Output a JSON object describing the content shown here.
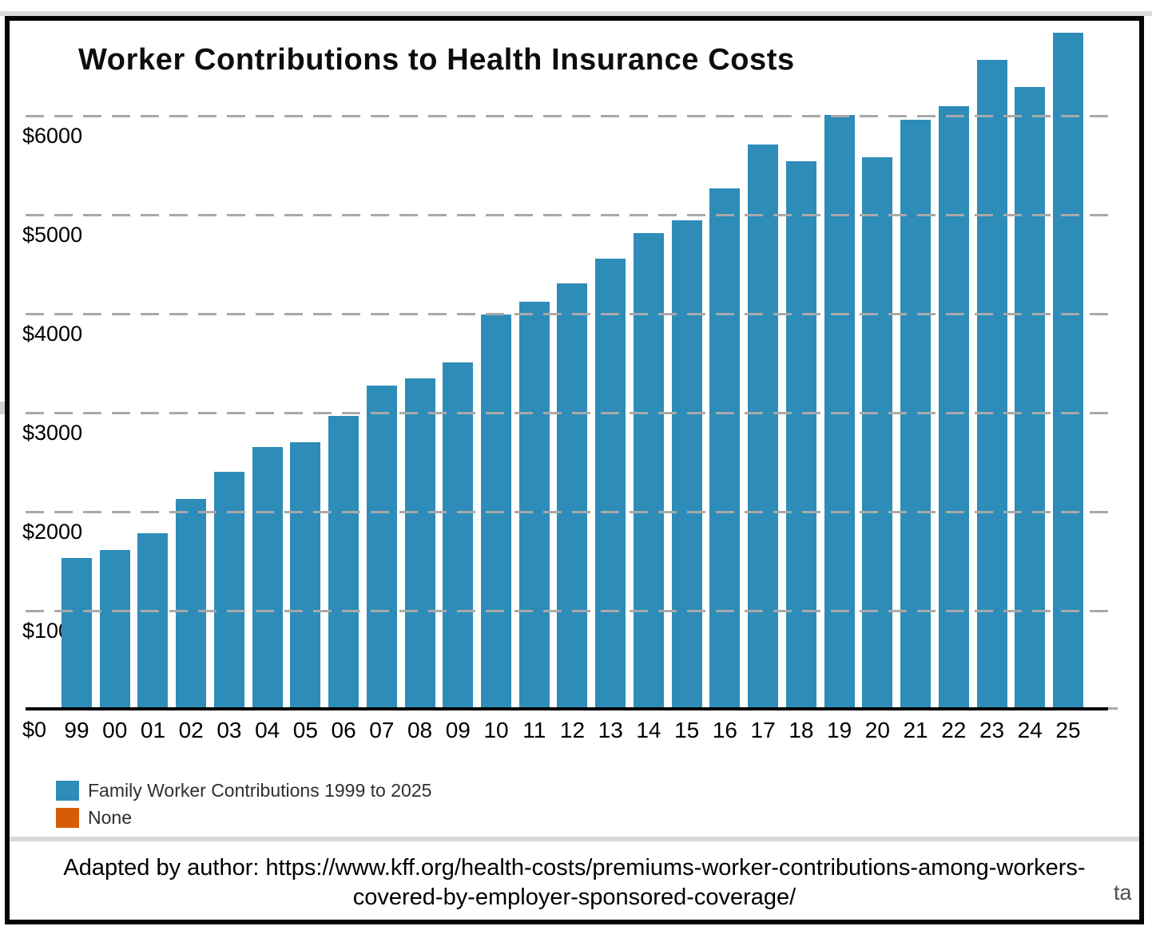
{
  "accent_colors": {
    "bar_blue": "#2e8cb8",
    "legend_orange": "#d85c08",
    "gridline_gray": "#a9a9a9"
  },
  "chart_data": {
    "type": "bar",
    "title": "Worker Contributions to Health Insurance Costs",
    "categories": [
      "99",
      "00",
      "01",
      "02",
      "03",
      "04",
      "05",
      "06",
      "07",
      "08",
      "09",
      "10",
      "11",
      "12",
      "13",
      "14",
      "15",
      "16",
      "17",
      "18",
      "19",
      "20",
      "21",
      "22",
      "23",
      "24",
      "25"
    ],
    "series": [
      {
        "name": "Family Worker Contributions 1999 to 2025",
        "color": "#2e8cb8",
        "values": [
          1543,
          1619,
          1787,
          2137,
          2412,
          2661,
          2713,
          2973,
          3281,
          3354,
          3515,
          3997,
          4129,
          4316,
          4565,
          4823,
          4955,
          5277,
          5714,
          5547,
          6015,
          5588,
          5969,
          6106,
          6575,
          6296,
          6850
        ]
      }
    ],
    "xlabel": "",
    "ylabel": "",
    "ylim": [
      0,
      7000
    ],
    "ytick_interval": 1000,
    "ytick_labels": [
      "$0",
      "$1000",
      "$2000",
      "$3000",
      "$4000",
      "$5000",
      "$6000"
    ],
    "grid": "horizontal-dashed",
    "legend_position": "bottom-left"
  },
  "legend": {
    "items": [
      {
        "label": "Family Worker Contributions 1999 to 2025",
        "color": "#2e8cb8"
      },
      {
        "label": "None",
        "color": "#d85c08"
      }
    ]
  },
  "footer": {
    "line1": "Adapted by author: https://www.kff.org/health-costs/premiums-worker-contributions-among-workers-",
    "line2": "covered-by-employer-sponsored-coverage/",
    "corner_fragment": "ta"
  }
}
